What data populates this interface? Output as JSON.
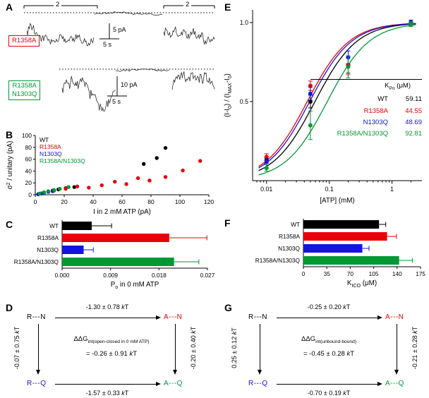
{
  "colors": {
    "wt": "#000000",
    "r1358a": "#e8000b",
    "n1303q": "#1414dd",
    "double": "#029833"
  },
  "panels": {
    "a": {
      "letter": "A",
      "bracket_label": "2",
      "trace1": {
        "label": "R1358A",
        "scale_v": "5 pA",
        "scale_h": "5 s"
      },
      "trace2": {
        "label_line1": "R1358A",
        "label_line2": "N1303Q",
        "scale_v": "10 pA",
        "scale_h": "5 s"
      }
    },
    "b": {
      "letter": "B"
    },
    "c": {
      "letter": "C"
    },
    "d": {
      "letter": "D",
      "nodes": {
        "tl": "R---N",
        "tr": "A---N",
        "bl": "R---Q",
        "br": "A---Q"
      },
      "top": "-1.30 ± 0.78 kT",
      "left": "-0.07 ± 0.75 kT",
      "right": "-0.20 ± 0.40 kT",
      "bottom": "-1.57 ± 0.33 kT",
      "center_g": "ΔΔG",
      "center_sub": "int(open-closed in 0 mM ATP)",
      "center_value": "= -0.26 ± 0.91 kT"
    },
    "e": {
      "letter": "E"
    },
    "f": {
      "letter": "F"
    },
    "g": {
      "letter": "G",
      "nodes": {
        "tl": "R---N",
        "tr": "A---N",
        "bl": "R---Q",
        "br": "A---Q"
      },
      "top": "-0.25 ± 0.20 kT",
      "left": "0.25 ± 0.12 kT",
      "right": "-0.21 ± 0.28 kT",
      "bottom": "-0.70 ± 0.19 kT",
      "center_g": "ΔΔG",
      "center_sub": "int(unbound-bound)",
      "center_value": "= -0.45 ± 0.28 kT"
    }
  },
  "chart_data": [
    {
      "id": "b",
      "type": "scatter",
      "xlabel": "I in 2 mM ATP (pA)",
      "ylabel_parts": [
        {
          "t": "σ"
        },
        {
          "t": "2",
          "sup": true
        },
        {
          "t": " / unitary (pA)"
        }
      ],
      "xlim": [
        0,
        120
      ],
      "xticks": [
        0,
        20,
        40,
        60,
        80,
        100,
        120
      ],
      "ylim": [
        0,
        100
      ],
      "yticks": [
        0,
        20,
        40,
        60,
        80,
        100
      ],
      "legend_position": "top-left",
      "series": [
        {
          "name": "WT",
          "color_key": "wt",
          "points": [
            [
              2,
              1
            ],
            [
              4,
              2
            ],
            [
              6,
              4
            ],
            [
              9,
              5
            ],
            [
              12,
              7
            ],
            [
              16,
              9
            ],
            [
              21,
              11
            ],
            [
              27,
              13
            ],
            [
              75,
              52
            ],
            [
              84,
              62
            ],
            [
              90,
              79
            ]
          ]
        },
        {
          "name": "R1358A",
          "color_key": "r1358a",
          "points": [
            [
              6,
              4
            ],
            [
              13,
              7
            ],
            [
              21,
              10
            ],
            [
              29,
              14
            ],
            [
              37,
              12
            ],
            [
              46,
              16
            ],
            [
              55,
              22
            ],
            [
              63,
              18
            ],
            [
              71,
              28
            ],
            [
              79,
              24
            ],
            [
              90,
              30
            ],
            [
              102,
              41
            ],
            [
              114,
              57
            ]
          ]
        },
        {
          "name": "N1303Q",
          "color_key": "n1303q",
          "points": [
            [
              2,
              1
            ],
            [
              4,
              2
            ],
            [
              6,
              3
            ],
            [
              9,
              5
            ],
            [
              12,
              6
            ]
          ]
        },
        {
          "name": "R1358A/N1303Q",
          "color_key": "double",
          "points": [
            [
              3,
              2
            ],
            [
              6,
              4
            ],
            [
              9,
              6
            ],
            [
              13,
              8
            ],
            [
              17,
              10
            ],
            [
              23,
              13
            ]
          ]
        }
      ]
    },
    {
      "id": "c",
      "type": "bar-h",
      "xlabel_parts": [
        {
          "t": "P"
        },
        {
          "t": "o",
          "sub": true
        },
        {
          "t": " in 0 mM ATP"
        }
      ],
      "xlim": [
        0,
        0.027
      ],
      "xticks": [
        "0.000",
        "0.009",
        "0.018",
        "0.027"
      ],
      "xtick_vals": [
        0,
        0.009,
        0.018,
        0.027
      ],
      "categories": [
        "WT",
        "R1358A",
        "N1303Q",
        "R1358A/N1303Q"
      ],
      "values": [
        0.0055,
        0.0199,
        0.004,
        0.0208
      ],
      "errors": [
        0.0037,
        0.007,
        0.0018,
        0.0046
      ],
      "color_keys": [
        "wt",
        "r1358a",
        "n1303q",
        "double"
      ]
    },
    {
      "id": "e",
      "type": "line-scatter-log",
      "xlabel": "[ATP] (mM)",
      "ylabel_parts": [
        {
          "t": "(I-I"
        },
        {
          "t": "0",
          "sub": true
        },
        {
          "t": ") / (I"
        },
        {
          "t": "MAX",
          "sub": true
        },
        {
          "t": "-I"
        },
        {
          "t": "0",
          "sub": true
        },
        {
          "t": ")"
        }
      ],
      "xlim": [
        0.006,
        3
      ],
      "xticks": [
        "0.01",
        "0.1",
        "1"
      ],
      "xtick_vals": [
        0.01,
        0.1,
        1
      ],
      "ylim": [
        0,
        1.08
      ],
      "yticks": [
        0.5,
        1.0
      ],
      "ytick_labels": [
        "0.5",
        "1.0"
      ],
      "hill": 1.3,
      "series": [
        {
          "name": "WT",
          "color_key": "wt",
          "K_uM": 59.11,
          "x": [
            0.01,
            0.05,
            0.2,
            2
          ],
          "y": [
            0.13,
            0.5,
            0.73,
            1.0
          ],
          "err": [
            0.02,
            0.04,
            0.05,
            0.015
          ]
        },
        {
          "name": "R1358A",
          "color_key": "r1358a",
          "K_uM": 44.55,
          "x": [
            0.01,
            0.05,
            0.2,
            2
          ],
          "y": [
            0.15,
            0.6,
            0.73,
            0.99
          ],
          "err": [
            0.02,
            0.03,
            0.06,
            0.015
          ]
        },
        {
          "name": "N1303Q",
          "color_key": "n1303q",
          "K_uM": 48.69,
          "x": [
            0.01,
            0.05,
            0.2,
            2
          ],
          "y": [
            0.12,
            0.55,
            0.78,
            1.0
          ],
          "err": [
            0.02,
            0.04,
            0.04,
            0.015
          ]
        },
        {
          "name": "R1358A/N1303Q",
          "color_key": "double",
          "K_uM": 92.81,
          "x": [
            0.01,
            0.05,
            0.2,
            2
          ],
          "y": [
            0.08,
            0.35,
            0.72,
            0.99
          ],
          "err": [
            0.02,
            0.09,
            0.07,
            0.015
          ]
        }
      ],
      "table": {
        "header_k": "K",
        "header_sub": "Po",
        "header_unit": " (μM)",
        "rows": [
          {
            "name": "WT",
            "value": "59.11",
            "color_key": "wt"
          },
          {
            "name": "R1358A",
            "value": "44.55",
            "color_key": "r1358a"
          },
          {
            "name": "N1303Q",
            "value": "48.69",
            "color_key": "n1303q"
          },
          {
            "name": "R1358A/N1303Q",
            "value": "92.81",
            "color_key": "double"
          }
        ]
      }
    },
    {
      "id": "f",
      "type": "bar-h",
      "xlabel_parts": [
        {
          "t": "K"
        },
        {
          "t": "ICO",
          "sub": true
        },
        {
          "t": " (μM)"
        }
      ],
      "xlim": [
        0,
        175
      ],
      "xticks": [
        "0",
        "35",
        "70",
        "105",
        "140",
        "175"
      ],
      "xtick_vals": [
        0,
        35,
        70,
        105,
        140,
        175
      ],
      "categories": [
        "WT",
        "R1358A",
        "N1303Q",
        "R1358A/N1303Q"
      ],
      "values": [
        113,
        125,
        88,
        143
      ],
      "errors": [
        10,
        14,
        10,
        20
      ],
      "color_keys": [
        "wt",
        "r1358a",
        "n1303q",
        "double"
      ]
    }
  ]
}
